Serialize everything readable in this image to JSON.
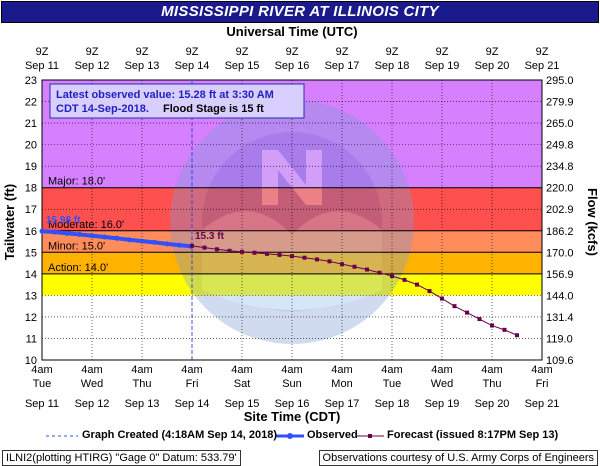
{
  "title": "MISSISSIPPI RIVER AT ILLINOIS CITY",
  "footer": {
    "left": "ILNI2(plotting HTIRG) \"Gage 0\" Datum: 533.79'",
    "right": "Observations courtesy of U.S. Army Corps of Engineers"
  },
  "legend": {
    "created": "Graph Created (4:18AM Sep 14, 2018)",
    "observed": "Observed",
    "forecast": "Forecast (issued 8:17PM Sep 13)"
  },
  "colors": {
    "title_bg": "#1a1a8c",
    "record_band": "#d680ff",
    "major_band": "#ff5050",
    "moderate_band": "#ff8c5a",
    "minor_band": "#ffb300",
    "action_band": "#ffff00",
    "observed": "#3050ff",
    "forecast": "#6b004f",
    "grid": "#000000"
  },
  "chart_data": {
    "type": "line",
    "title": "MISSISSIPPI RIVER AT ILLINOIS CITY",
    "top_axis_title": "Universal Time (UTC)",
    "xlabel": "Site Time (CDT)",
    "ylabel": "Tailwater (ft)",
    "y2label": "Flow (kcfs)",
    "ylim": [
      10,
      23
    ],
    "y_ticks": [
      10,
      11,
      12,
      13,
      14,
      15,
      16,
      17,
      18,
      19,
      20,
      21,
      22,
      23
    ],
    "y2_ticks": [
      "109.6",
      "119.0",
      "131.4",
      "144.0",
      "156.9",
      "170.0",
      "186.2",
      "202.9",
      "220.0",
      "234.8",
      "249.8",
      "265.0",
      "279.9",
      "295.0"
    ],
    "x_range_days": [
      11,
      21
    ],
    "bottom_ticks": [
      {
        "time": "4am",
        "weekday": "Tue",
        "date": "Sep 11"
      },
      {
        "time": "4am",
        "weekday": "Wed",
        "date": "Sep 12"
      },
      {
        "time": "4am",
        "weekday": "Thu",
        "date": "Sep 13"
      },
      {
        "time": "4am",
        "weekday": "Fri",
        "date": "Sep 14"
      },
      {
        "time": "4am",
        "weekday": "Sat",
        "date": "Sep 15"
      },
      {
        "time": "4am",
        "weekday": "Sun",
        "date": "Sep 16"
      },
      {
        "time": "4am",
        "weekday": "Mon",
        "date": "Sep 17"
      },
      {
        "time": "4am",
        "weekday": "Tue",
        "date": "Sep 18"
      },
      {
        "time": "4am",
        "weekday": "Wed",
        "date": "Sep 19"
      },
      {
        "time": "4am",
        "weekday": "Thu",
        "date": "Sep 20"
      },
      {
        "time": "4am",
        "weekday": "Fri",
        "date": "Sep 21"
      }
    ],
    "top_ticks": [
      {
        "time": "9Z",
        "date": "Sep 11"
      },
      {
        "time": "9Z",
        "date": "Sep 12"
      },
      {
        "time": "9Z",
        "date": "Sep 13"
      },
      {
        "time": "9Z",
        "date": "Sep 14"
      },
      {
        "time": "9Z",
        "date": "Sep 15"
      },
      {
        "time": "9Z",
        "date": "Sep 16"
      },
      {
        "time": "9Z",
        "date": "Sep 17"
      },
      {
        "time": "9Z",
        "date": "Sep 18"
      },
      {
        "time": "9Z",
        "date": "Sep 19"
      },
      {
        "time": "9Z",
        "date": "Sep 20"
      },
      {
        "time": "9Z",
        "date": "Sep 21"
      }
    ],
    "flood_categories": [
      {
        "name": "Major",
        "label": "Major: 18.0'",
        "value": 18.0
      },
      {
        "name": "Moderate",
        "label": "Moderate: 16.0'",
        "value": 16.0
      },
      {
        "name": "Minor",
        "label": "Minor: 15.0'",
        "value": 15.0
      },
      {
        "name": "Action",
        "label": "Action: 14.0'",
        "value": 14.0
      }
    ],
    "graph_created_day": 14.0,
    "observed_max_label": "15.98 ft",
    "forecast_start_label": "15.3 ft",
    "annotation": {
      "line1": "Latest observed value: 15.28 ft at 3:30 AM",
      "line2": "CDT 14-Sep-2018.",
      "line3": "Flood Stage is 15 ft"
    },
    "series": [
      {
        "name": "Observed",
        "x": [
          11.0,
          11.25,
          11.5,
          11.75,
          12.0,
          12.25,
          12.5,
          12.75,
          13.0,
          13.25,
          13.5,
          13.75,
          13.98
        ],
        "y": [
          15.98,
          15.94,
          15.88,
          15.83,
          15.77,
          15.71,
          15.65,
          15.58,
          15.52,
          15.46,
          15.39,
          15.33,
          15.28
        ]
      },
      {
        "name": "Forecast",
        "x": [
          14.0,
          14.25,
          14.5,
          14.75,
          15.0,
          15.25,
          15.5,
          15.75,
          16.0,
          16.25,
          16.5,
          16.75,
          17.0,
          17.25,
          17.5,
          17.75,
          18.0,
          18.25,
          18.5,
          18.75,
          19.0,
          19.25,
          19.5,
          19.75,
          20.0,
          20.25,
          20.5
        ],
        "y": [
          15.3,
          15.22,
          15.14,
          15.07,
          15.02,
          14.98,
          14.93,
          14.88,
          14.82,
          14.75,
          14.67,
          14.58,
          14.45,
          14.33,
          14.2,
          14.05,
          13.9,
          13.72,
          13.5,
          13.2,
          12.85,
          12.5,
          12.2,
          11.9,
          11.6,
          11.4,
          11.15
        ]
      }
    ]
  }
}
